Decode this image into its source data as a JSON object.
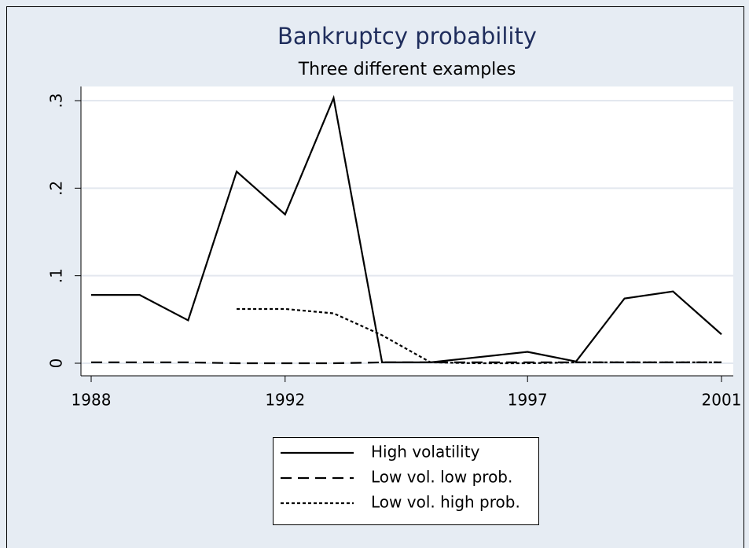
{
  "chart_data": {
    "type": "line",
    "title": "Bankruptcy probability",
    "subtitle": "Three different examples",
    "x": [
      1988,
      1989,
      1990,
      1991,
      1992,
      1993,
      1994,
      1995,
      1996,
      1997,
      1998,
      1999,
      2000,
      2001
    ],
    "xlim": [
      1988,
      2001
    ],
    "xticks": [
      1988,
      1992,
      1997,
      2001
    ],
    "ylim": [
      0,
      0.3
    ],
    "yticks": [
      0,
      {
        "value": 0.1,
        "label": ".1"
      },
      {
        "value": 0.2,
        "label": ".2"
      },
      {
        "value": 0.3,
        "label": ".3"
      }
    ],
    "grid": true,
    "series": [
      {
        "name": "High volatility",
        "color": "#000000",
        "style": "solid",
        "values": [
          0.078,
          0.078,
          0.049,
          0.219,
          0.17,
          0.303,
          0.001,
          0.001,
          0.007,
          0.013,
          0.002,
          0.074,
          0.082,
          0.033
        ]
      },
      {
        "name": "Low vol. low prob.",
        "color": "#000000",
        "style": "dash",
        "values": [
          0.001,
          0.001,
          0.001,
          0.0,
          0.0,
          0.0,
          0.001,
          0.001,
          0.001,
          0.001,
          0.001,
          0.001,
          0.001,
          0.001
        ]
      },
      {
        "name": "Low vol. high prob.",
        "color": "#000000",
        "style": "dot",
        "values": [
          null,
          null,
          null,
          0.062,
          0.062,
          0.057,
          0.032,
          0.001,
          0.0,
          0.0,
          0.001,
          0.001,
          0.001,
          0.001
        ]
      }
    ]
  }
}
